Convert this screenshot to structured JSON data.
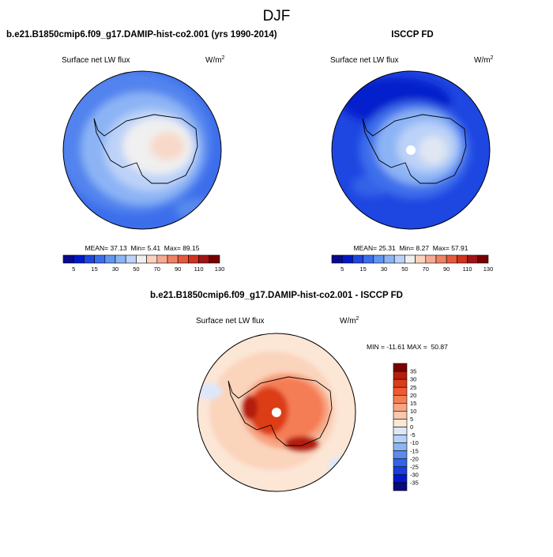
{
  "season": "DJF",
  "panels": [
    {
      "id": "model",
      "title": "b.e21.B1850cmip6.f09_g17.DAMIP-hist-co2.001 (yrs 1990-2014)",
      "variable": "Surface net LW flux",
      "units_base": "W/m",
      "units_exp": "2",
      "stats": {
        "mean_label": "MEAN=",
        "mean": "37.13",
        "min_label": "Min=",
        "min": "5.41",
        "max_label": "Max=",
        "max": "89.15"
      }
    },
    {
      "id": "obs",
      "title": "ISCCP FD",
      "variable": "Surface net LW flux",
      "units_base": "W/m",
      "units_exp": "2",
      "stats": {
        "mean_label": "MEAN=",
        "mean": "25.31",
        "min_label": "Min=",
        "min": "8.27",
        "max_label": "Max=",
        "max": "57.91"
      }
    },
    {
      "id": "diff",
      "title": "b.e21.B1850cmip6.f09_g17.DAMIP-hist-co2.001 - ISCCP FD",
      "variable": "Surface net LW flux",
      "units_base": "W/m",
      "units_exp": "2",
      "stats_text": "MIN = -11.61 MAX =  50.87"
    }
  ],
  "abs_colorbar": {
    "colors": [
      "#0a0a8c",
      "#0019c8",
      "#1e46e1",
      "#3c6eeb",
      "#6496f0",
      "#8cb4f5",
      "#bcd2f8",
      "#f0f0f0",
      "#fad2be",
      "#f5aa91",
      "#f08264",
      "#e65a3c",
      "#d2321e",
      "#a01414",
      "#780000"
    ],
    "tick_labels": [
      "5",
      "15",
      "30",
      "50",
      "70",
      "90",
      "110",
      "130"
    ]
  },
  "diff_colorbar": {
    "colors": [
      "#0a0a78",
      "#0019c8",
      "#1e3cdc",
      "#3264e6",
      "#5a8cf0",
      "#8cb4f5",
      "#b4d2f8",
      "#dce8fa",
      "#fce6d6",
      "#fac8aa",
      "#f8a582",
      "#f57d55",
      "#f05a32",
      "#dc3c19",
      "#b41e0a",
      "#7d0000"
    ],
    "tick_labels": [
      "35",
      "30",
      "25",
      "20",
      "15",
      "10",
      "5",
      "0",
      "-5",
      "-10",
      "-15",
      "-20",
      "-25",
      "-30",
      "-35"
    ]
  },
  "chart_data": [
    {
      "type": "heatmap",
      "title": "b.e21.B1850cmip6.f09_g17.DAMIP-hist-co2.001 (yrs 1990-2014)",
      "variable": "Surface net LW flux",
      "units": "W/m^2",
      "mean": 37.13,
      "min": 5.41,
      "max": 89.15,
      "levels": [
        5,
        10,
        15,
        20,
        25,
        30,
        40,
        50,
        60,
        70,
        80,
        90,
        100,
        110,
        120,
        130
      ]
    },
    {
      "type": "heatmap",
      "title": "ISCCP FD",
      "variable": "Surface net LW flux",
      "units": "W/m^2",
      "mean": 25.31,
      "min": 8.27,
      "max": 57.91,
      "levels": [
        5,
        10,
        15,
        20,
        25,
        30,
        40,
        50,
        60,
        70,
        80,
        90,
        100,
        110,
        120,
        130
      ]
    },
    {
      "type": "heatmap",
      "title": "b.e21.B1850cmip6.f09_g17.DAMIP-hist-co2.001 - ISCCP FD",
      "variable": "Surface net LW flux",
      "units": "W/m^2",
      "min": -11.61,
      "max": 50.87,
      "levels": [
        -35,
        -30,
        -25,
        -20,
        -15,
        -10,
        -5,
        0,
        5,
        10,
        15,
        20,
        25,
        30,
        35
      ]
    }
  ]
}
